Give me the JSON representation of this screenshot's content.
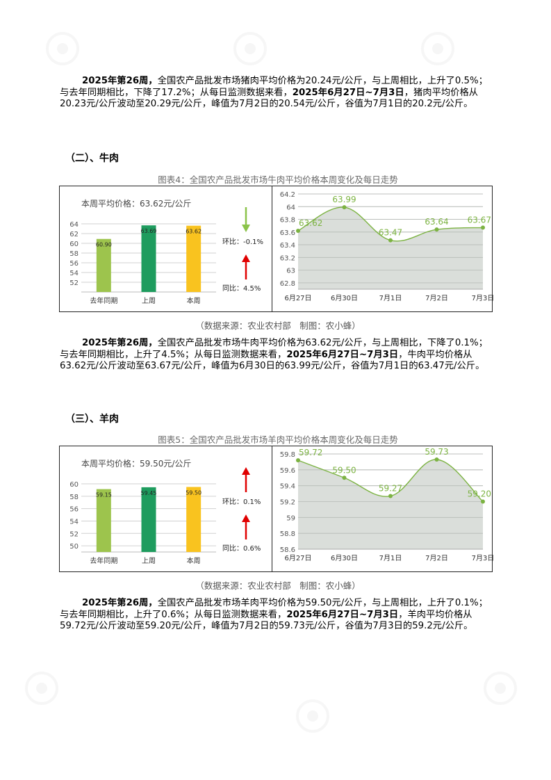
{
  "pork_paragraph": {
    "b1": "2025年第26周，",
    "t1": "全国农产品批发市场猪肉平均价格为20.24元/公斤，与上周相比，上升了0.5%；与去年同期相比，下降了17.2%；从每日监测数据来看，",
    "b2": "2025年6月27日~7月3日",
    "t2": "，猪肉平均价格从20.23元/公斤波动至20.29元/公斤，峰值为7月2日的20.54元/公斤，谷值为7月1日的20.2元/公斤。"
  },
  "beef_section": {
    "title": "（二）、牛肉",
    "caption": "图表4：全国农产品批发市场牛肉平均价格本周变化及每日走势",
    "source": "（数据来源：农业农村部　制图：农小蜂）",
    "paragraph": {
      "b1": "2025年第26周，",
      "t1": "全国农产品批发市场牛肉平均价格为63.62元/公斤，与上周相比，下降了0.1%；与去年同期相比，上升了4.5%；从每日监测数据来看，",
      "b2": "2025年6月27日~7月3日",
      "t2": "，牛肉平均价格从63.62元/公斤波动至63.67元/公斤，峰值为6月30日的63.99元/公斤，谷值为7月1日的63.47元/公斤。"
    }
  },
  "mutton_section": {
    "title": "（三）、羊肉",
    "caption": "图表5：全国农产品批发市场羊肉平均价格本周变化及每日走势",
    "source": "（数据来源：农业农村部　制图：农小蜂）",
    "paragraph": {
      "b1": "2025年第26周，",
      "t1": "全国农产品批发市场羊肉平均价格为59.50元/公斤，与上周相比，上升了0.1%；与去年同期相比，上升了0.6%；从每日监测数据来看，",
      "b2": "2025年6月27日~7月3日",
      "t2": "，羊肉平均价格从59.72元/公斤波动至59.20元/公斤，峰值为7月2日的59.73元/公斤，谷值为7月3日的59.2元/公斤。"
    }
  },
  "colors": {
    "bar_last_year": "#9dc44d",
    "bar_last_week": "#1e9c5e",
    "bar_this_week": "#f9c31f",
    "line": "#7cb342",
    "area": "#d3d8d3",
    "up_arrow": "#e00000",
    "down_arrow": "#8bc34a"
  },
  "chart_data": [
    {
      "type": "bar",
      "summary": "本周平均价格：63.62元/公斤",
      "categories": [
        "去年同期",
        "上周",
        "本周"
      ],
      "values": [
        60.9,
        63.69,
        63.62
      ],
      "value_labels": [
        "60.90",
        "63.69",
        "63.62"
      ],
      "ylim": [
        50,
        64
      ],
      "yticks": [
        "52",
        "54",
        "56",
        "58",
        "60",
        "62",
        "64"
      ],
      "ring_label": "环比：-0.1%",
      "ring_dir": "down",
      "yoy_label": "同比：4.5%",
      "yoy_dir": "up"
    },
    {
      "type": "area",
      "categories": [
        "6月27日",
        "6月30日",
        "7月1日",
        "7月2日",
        "7月3日"
      ],
      "values": [
        63.62,
        63.99,
        63.47,
        63.64,
        63.67
      ],
      "value_labels": [
        "63.62",
        "63.99",
        "63.47",
        "63.64",
        "63.67"
      ],
      "ylim": [
        62.7,
        64.2
      ],
      "yticks": [
        "62.8",
        "63",
        "63.2",
        "63.4",
        "63.6",
        "63.8",
        "64",
        "64.2"
      ]
    },
    {
      "type": "bar",
      "summary": "本周平均价格：59.50元/公斤",
      "categories": [
        "去年同期",
        "上周",
        "本周"
      ],
      "values": [
        59.15,
        59.45,
        59.5
      ],
      "value_labels": [
        "59.15",
        "59.45",
        "59.50"
      ],
      "ylim": [
        49,
        60
      ],
      "yticks": [
        "50",
        "52",
        "54",
        "56",
        "58",
        "60"
      ],
      "ring_label": "环比：0.1%",
      "ring_dir": "up",
      "yoy_label": "同比：0.6%",
      "yoy_dir": "up"
    },
    {
      "type": "area",
      "categories": [
        "6月27日",
        "6月30日",
        "7月1日",
        "7月2日",
        "7月3日"
      ],
      "values": [
        59.72,
        59.5,
        59.27,
        59.73,
        59.2
      ],
      "value_labels": [
        "59.72",
        "59.50",
        "59.27",
        "59.73",
        "59.20"
      ],
      "ylim": [
        58.6,
        59.8
      ],
      "yticks": [
        "58.6",
        "58.8",
        "59",
        "59.2",
        "59.4",
        "59.6",
        "59.8"
      ]
    }
  ]
}
